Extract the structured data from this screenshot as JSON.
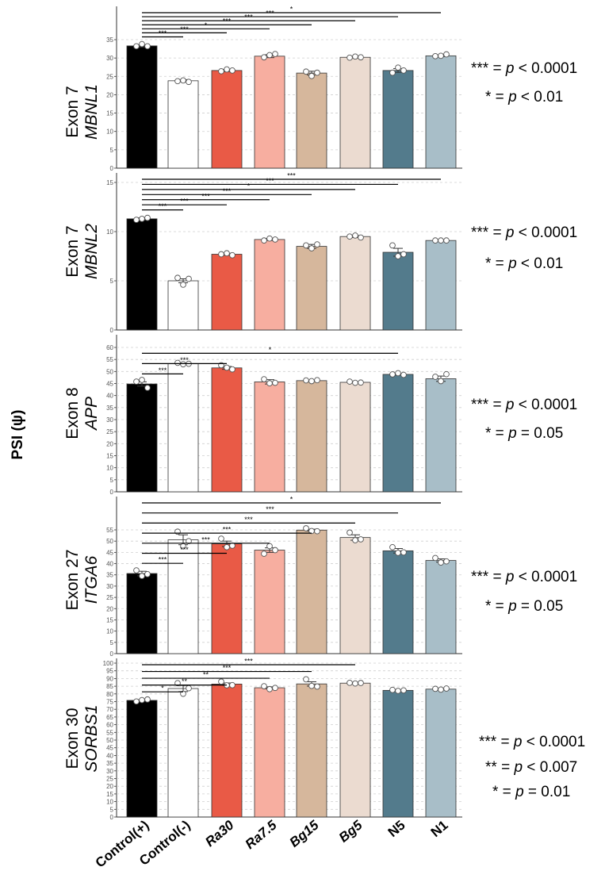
{
  "chart_data": {
    "y_axis_label": "PSI (ψ)",
    "categories": [
      {
        "label": "Control(+)",
        "italic": false
      },
      {
        "label": "Control(-)",
        "italic": false
      },
      {
        "label": "Ra30",
        "italic": true
      },
      {
        "label": "Ra7.5",
        "italic": true
      },
      {
        "label": "Bg15",
        "italic": true
      },
      {
        "label": "Bg5",
        "italic": true
      },
      {
        "label": "N5",
        "italic": false
      },
      {
        "label": "N1",
        "italic": false
      }
    ],
    "colors": [
      "#000000",
      "#ffffff",
      "#e95a46",
      "#f7aea0",
      "#d6b79c",
      "#ebdbd0",
      "#537b8c",
      "#a8bec8"
    ],
    "panels": [
      {
        "type": "bar",
        "exon": "Exon 7",
        "gene": "MBNL1",
        "ylim": [
          0,
          35
        ],
        "ticks": [
          0,
          5,
          10,
          15,
          20,
          25,
          30,
          35
        ],
        "values": [
          33.3,
          23.8,
          26.6,
          30.5,
          25.9,
          30.2,
          26.6,
          30.6
        ],
        "points": [
          [
            33.2,
            33.8,
            33.2
          ],
          [
            23.7,
            23.9,
            23.5
          ],
          [
            26.4,
            26.9,
            26.6
          ],
          [
            30.2,
            30.8,
            31.1
          ],
          [
            26.3,
            25.1,
            26.0
          ],
          [
            30.1,
            30.4,
            30.2
          ],
          [
            26.0,
            27.4,
            26.6
          ],
          [
            30.5,
            30.6,
            31.0
          ]
        ],
        "errors": [
          0.3,
          0.3,
          0.3,
          0.4,
          0.5,
          0.2,
          0.5,
          0.2
        ],
        "comparisons": [
          {
            "from": 0,
            "to": 1,
            "label": "***"
          },
          {
            "from": 0,
            "to": 2,
            "label": "***"
          },
          {
            "from": 0,
            "to": 3,
            "label": "*"
          },
          {
            "from": 0,
            "to": 4,
            "label": "***"
          },
          {
            "from": 0,
            "to": 5,
            "label": "***"
          },
          {
            "from": 0,
            "to": 6,
            "label": "***"
          },
          {
            "from": 0,
            "to": 7,
            "label": "*"
          }
        ],
        "legend": [
          {
            "stars": "***",
            "rel": "=",
            "p": "0.0001",
            "op": "<"
          },
          {
            "stars": "*",
            "rel": "=",
            "p": "0.01",
            "op": "<"
          }
        ]
      },
      {
        "type": "bar",
        "exon": "Exon 7",
        "gene": "MBNL2",
        "ylim": [
          0,
          15
        ],
        "ticks": [
          0,
          5,
          10,
          15
        ],
        "values": [
          11.3,
          5.0,
          7.7,
          9.2,
          8.5,
          9.5,
          7.9,
          9.1
        ],
        "points": [
          [
            11.2,
            11.3,
            11.4
          ],
          [
            5.3,
            4.6,
            5.2
          ],
          [
            7.7,
            7.8,
            7.6
          ],
          [
            9.1,
            9.3,
            9.2
          ],
          [
            8.6,
            8.3,
            8.7
          ],
          [
            9.5,
            9.6,
            9.4
          ],
          [
            8.6,
            7.5,
            7.7
          ],
          [
            9.1,
            9.1,
            9.1
          ]
        ],
        "errors": [
          0.1,
          0.2,
          0.1,
          0.1,
          0.2,
          0.1,
          0.4,
          0.05
        ],
        "comparisons": [
          {
            "from": 0,
            "to": 1,
            "label": "***"
          },
          {
            "from": 0,
            "to": 2,
            "label": "***"
          },
          {
            "from": 0,
            "to": 3,
            "label": "***"
          },
          {
            "from": 0,
            "to": 4,
            "label": "***"
          },
          {
            "from": 0,
            "to": 5,
            "label": "*"
          },
          {
            "from": 0,
            "to": 6,
            "label": "***"
          },
          {
            "from": 0,
            "to": 7,
            "label": "***"
          }
        ],
        "legend": [
          {
            "stars": "***",
            "rel": "=",
            "p": "0.0001",
            "op": "<"
          },
          {
            "stars": "*",
            "rel": "=",
            "p": "0.01",
            "op": "<"
          }
        ]
      },
      {
        "type": "bar",
        "exon": "Exon 8",
        "gene": "APP",
        "ylim": [
          0,
          60
        ],
        "ticks": [
          0,
          5,
          10,
          15,
          20,
          25,
          30,
          35,
          40,
          45,
          50,
          55,
          60
        ],
        "values": [
          44.8,
          53.2,
          51.5,
          45.7,
          46.2,
          45.5,
          48.8,
          47.0
        ],
        "points": [
          [
            45.8,
            46.5,
            43.2
          ],
          [
            53.6,
            53.0,
            53.2
          ],
          [
            52.6,
            51.6,
            50.9
          ],
          [
            46.8,
            45.1,
            45.3
          ],
          [
            46.3,
            46.0,
            46.4
          ],
          [
            45.8,
            45.3,
            45.4
          ],
          [
            48.8,
            49.3,
            48.6
          ],
          [
            47.8,
            46.0,
            48.9
          ]
        ],
        "errors": [
          0.9,
          0.2,
          0.6,
          0.9,
          0.2,
          0.2,
          0.3,
          1.1
        ],
        "comparisons": [
          {
            "from": 0,
            "to": 1,
            "label": "***"
          },
          {
            "from": 0,
            "to": 2,
            "label": "***"
          },
          {
            "from": 0,
            "to": 6,
            "label": "*"
          }
        ],
        "legend": [
          {
            "stars": "***",
            "rel": "=",
            "p": "0.0001",
            "op": "<"
          },
          {
            "stars": "*",
            "rel": "=",
            "p": "0.05",
            "op": "="
          }
        ]
      },
      {
        "type": "bar",
        "exon": "Exon 27",
        "gene": "ITGA6",
        "ylim": [
          0,
          55
        ],
        "ticks": [
          0,
          5,
          10,
          15,
          20,
          25,
          30,
          35,
          40,
          45,
          50,
          55
        ],
        "values": [
          35.6,
          50.6,
          48.8,
          46.0,
          54.9,
          51.6,
          45.7,
          41.4
        ],
        "points": [
          [
            37.0,
            34.5,
            35.3
          ],
          [
            54.2,
            47.7,
            50.0
          ],
          [
            51.1,
            47.3,
            48.0
          ],
          [
            44.4,
            47.8,
            46.0
          ],
          [
            55.7,
            54.5,
            54.4
          ],
          [
            53.8,
            50.4,
            50.8
          ],
          [
            47.3,
            44.8,
            45.0
          ],
          [
            42.5,
            40.5,
            41.0
          ]
        ],
        "errors": [
          1.0,
          2.2,
          1.2,
          1.0,
          0.4,
          1.2,
          1.0,
          0.7
        ],
        "comparisons": [
          {
            "from": 0,
            "to": 1,
            "label": "***"
          },
          {
            "from": 0,
            "to": 2,
            "label": "***"
          },
          {
            "from": 0,
            "to": 3,
            "label": "***"
          },
          {
            "from": 0,
            "to": 4,
            "label": "***"
          },
          {
            "from": 0,
            "to": 5,
            "label": "***"
          },
          {
            "from": 0,
            "to": 6,
            "label": "***"
          },
          {
            "from": 0,
            "to": 7,
            "label": "*"
          }
        ],
        "legend": [
          {
            "stars": "***",
            "rel": "=",
            "p": "0.0001",
            "op": "<"
          },
          {
            "stars": "*",
            "rel": "=",
            "p": "0.05",
            "op": "="
          }
        ]
      },
      {
        "type": "bar",
        "exon": "Exon 30",
        "gene": "SORBS1",
        "ylim": [
          0,
          100
        ],
        "ticks": [
          0,
          5,
          10,
          15,
          20,
          25,
          30,
          35,
          40,
          45,
          50,
          55,
          60,
          65,
          70,
          75,
          80,
          85,
          90,
          95,
          100
        ],
        "values": [
          75.8,
          83.5,
          86.4,
          84.0,
          86.5,
          87.0,
          82.3,
          83.1
        ],
        "points": [
          [
            75.1,
            76.0,
            76.4
          ],
          [
            87.0,
            80.1,
            83.7
          ],
          [
            88.0,
            85.6,
            85.7
          ],
          [
            85.0,
            83.1,
            83.9
          ],
          [
            89.5,
            85.2,
            84.8
          ],
          [
            87.2,
            86.8,
            87.1
          ],
          [
            82.6,
            82.0,
            82.3
          ],
          [
            83.3,
            82.8,
            83.5
          ]
        ],
        "errors": [
          0.4,
          2.0,
          0.7,
          0.6,
          1.4,
          0.2,
          0.2,
          0.2
        ],
        "comparisons": [
          {
            "from": 0,
            "to": 1,
            "label": "*"
          },
          {
            "from": 0,
            "to": 2,
            "label": "**"
          },
          {
            "from": 0,
            "to": 3,
            "label": "**"
          },
          {
            "from": 0,
            "to": 4,
            "label": "***"
          },
          {
            "from": 0,
            "to": 5,
            "label": "***"
          }
        ],
        "legend": [
          {
            "stars": "***",
            "rel": "=",
            "p": "0.0001",
            "op": "<"
          },
          {
            "stars": "**",
            "rel": "=",
            "p": "0.007",
            "op": "<"
          },
          {
            "stars": "*",
            "rel": "=",
            "p": "0.01",
            "op": "="
          }
        ]
      }
    ]
  }
}
